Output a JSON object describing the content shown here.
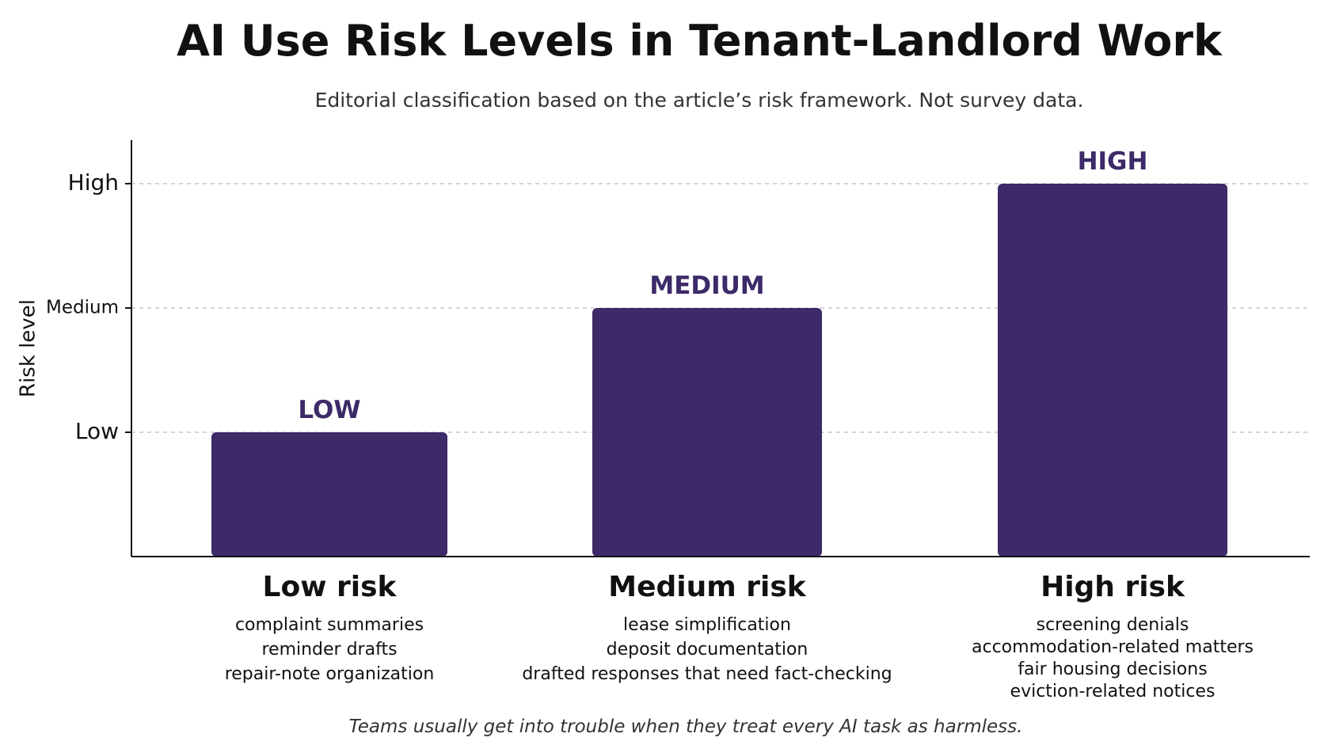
{
  "chart_data": {
    "type": "bar",
    "title": "AI Use Risk Levels in Tenant-Landlord Work",
    "subtitle": "Editorial classification based on the article’s risk framework. Not survey data.",
    "ylabel": "Risk level",
    "y_ticks": [
      {
        "label": "Low",
        "value": 1
      },
      {
        "label": "Medium",
        "value": 2
      },
      {
        "label": "High",
        "value": 3
      }
    ],
    "ylim": [
      0,
      3.35
    ],
    "grid": true,
    "categories": [
      "Low risk",
      "Medium risk",
      "High risk"
    ],
    "values": [
      1,
      2,
      3
    ],
    "bar_labels": [
      "LOW",
      "MEDIUM",
      "HIGH"
    ],
    "descriptions": [
      [
        "complaint summaries",
        "reminder drafts",
        "repair-note organization"
      ],
      [
        "lease simplification",
        "deposit documentation",
        "drafted responses that need fact-checking"
      ],
      [
        "screening denials",
        "accommodation-related matters",
        "fair housing decisions",
        "eviction-related notices"
      ]
    ],
    "footnote": "Teams usually get into trouble when they treat every AI task as harmless.",
    "colors": {
      "bar": "#3d2a68",
      "bar_label": "#3d2a68",
      "grid": "#c8c8c8",
      "axis": "#111111",
      "text": "#111111"
    }
  }
}
